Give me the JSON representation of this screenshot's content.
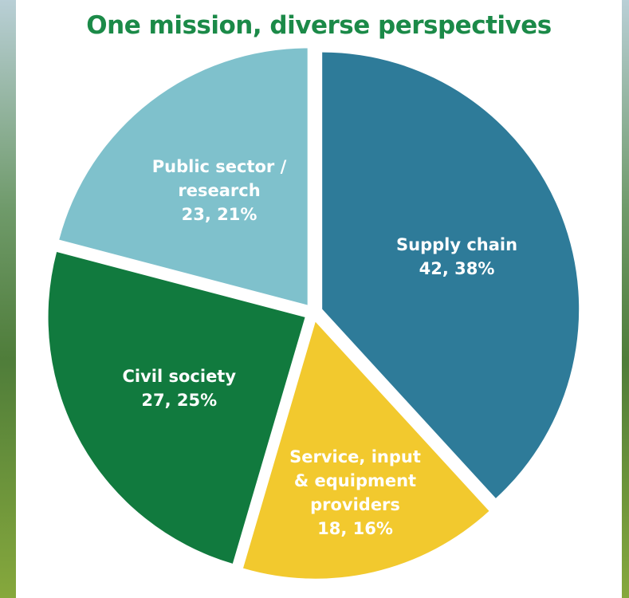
{
  "chart_data": {
    "type": "pie",
    "title": "One mission, diverse perspectives",
    "categories": [
      "Supply chain",
      "Service, input & equipment providers",
      "Civil society",
      "Public sector / research"
    ],
    "values": [
      42,
      18,
      27,
      23
    ],
    "value_labels": [
      "42, 38%",
      "18, 16%",
      "27, 25%",
      "23, 21%"
    ],
    "colors": [
      "#2e7b99",
      "#f2c92e",
      "#117a3e",
      "#7fc1cc"
    ]
  }
}
